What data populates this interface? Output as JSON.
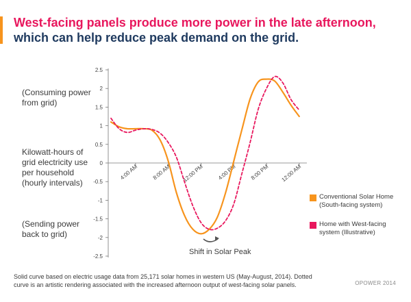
{
  "title": {
    "line1": "West-facing panels produce more power in the late afternoon,",
    "line2": "which can help reduce peak demand on the grid."
  },
  "labels": {
    "consuming": "(Consuming power from grid)",
    "ylabel": "Kilowatt-hours of grid electricity use per household (hourly intervals)",
    "sending": "(Sending power back to grid)",
    "annotation": "Shift in Solar Peak"
  },
  "legend": [
    {
      "label": "Conventional Solar Home (South-facing system)",
      "color": "#f7941d"
    },
    {
      "label": "Home with West-facing system (Illustrative)",
      "color": "#e8175d"
    }
  ],
  "footnote": "Solid curve based on electric usage data from 25,171 solar homes in western US (May-August, 2014). Dotted curve is an artistic rendering associated with the increased afternoon output of west-facing solar panels.",
  "credit": "OPOWER 2014",
  "colors": {
    "title_line1": "#e8175d",
    "title_line2": "#1f3a5f",
    "accent": "#f7941d"
  },
  "chart_data": {
    "type": "line",
    "x_unit": "hour of day",
    "ylim": [
      -2.5,
      2.5
    ],
    "xlim": [
      0,
      24
    ],
    "yticks": [
      -2.5,
      -2,
      -1.5,
      -1,
      -0.5,
      0,
      0.5,
      1,
      1.5,
      2,
      2.5
    ],
    "ytick_labels": [
      "-2.5",
      "-2",
      "-1.5",
      "-1",
      "-0.5",
      "0",
      "0.5",
      "1",
      "1.5",
      "2",
      "2.5"
    ],
    "xticks": [
      4,
      8,
      12,
      16,
      20,
      24
    ],
    "xtick_labels": [
      "4:00 AM",
      "8:00 AM",
      "12:00 PM",
      "4:00 PM",
      "8:00 PM",
      "12:00 AM"
    ],
    "grid": false,
    "legend_position": "right",
    "series": [
      {
        "name": "Conventional Solar Home (South-facing system)",
        "style": "solid",
        "color": "#f7941d",
        "x": [
          1,
          2,
          3,
          4,
          5,
          6,
          7,
          8,
          9,
          10,
          11,
          12,
          13,
          14,
          15,
          16,
          17,
          18,
          19,
          20,
          21,
          22,
          23,
          24
        ],
        "y": [
          1.1,
          0.97,
          0.92,
          0.92,
          0.92,
          0.88,
          0.62,
          0.05,
          -0.8,
          -1.42,
          -1.78,
          -1.9,
          -1.78,
          -1.45,
          -0.8,
          0.05,
          0.9,
          1.72,
          2.18,
          2.25,
          2.2,
          1.9,
          1.55,
          1.25
        ]
      },
      {
        "name": "Home with West-facing system (Illustrative)",
        "style": "dashed",
        "color": "#e8175d",
        "x": [
          1,
          2,
          3,
          4,
          5,
          6,
          7,
          8,
          9,
          10,
          11,
          12,
          13,
          14,
          15,
          16,
          17,
          18,
          19,
          20,
          21,
          22,
          23,
          24
        ],
        "y": [
          1.2,
          0.92,
          0.82,
          0.88,
          0.92,
          0.9,
          0.8,
          0.55,
          0.15,
          -0.52,
          -1.15,
          -1.6,
          -1.78,
          -1.75,
          -1.55,
          -1.1,
          -0.28,
          0.55,
          1.45,
          2.0,
          2.32,
          2.15,
          1.7,
          1.42
        ]
      }
    ]
  }
}
